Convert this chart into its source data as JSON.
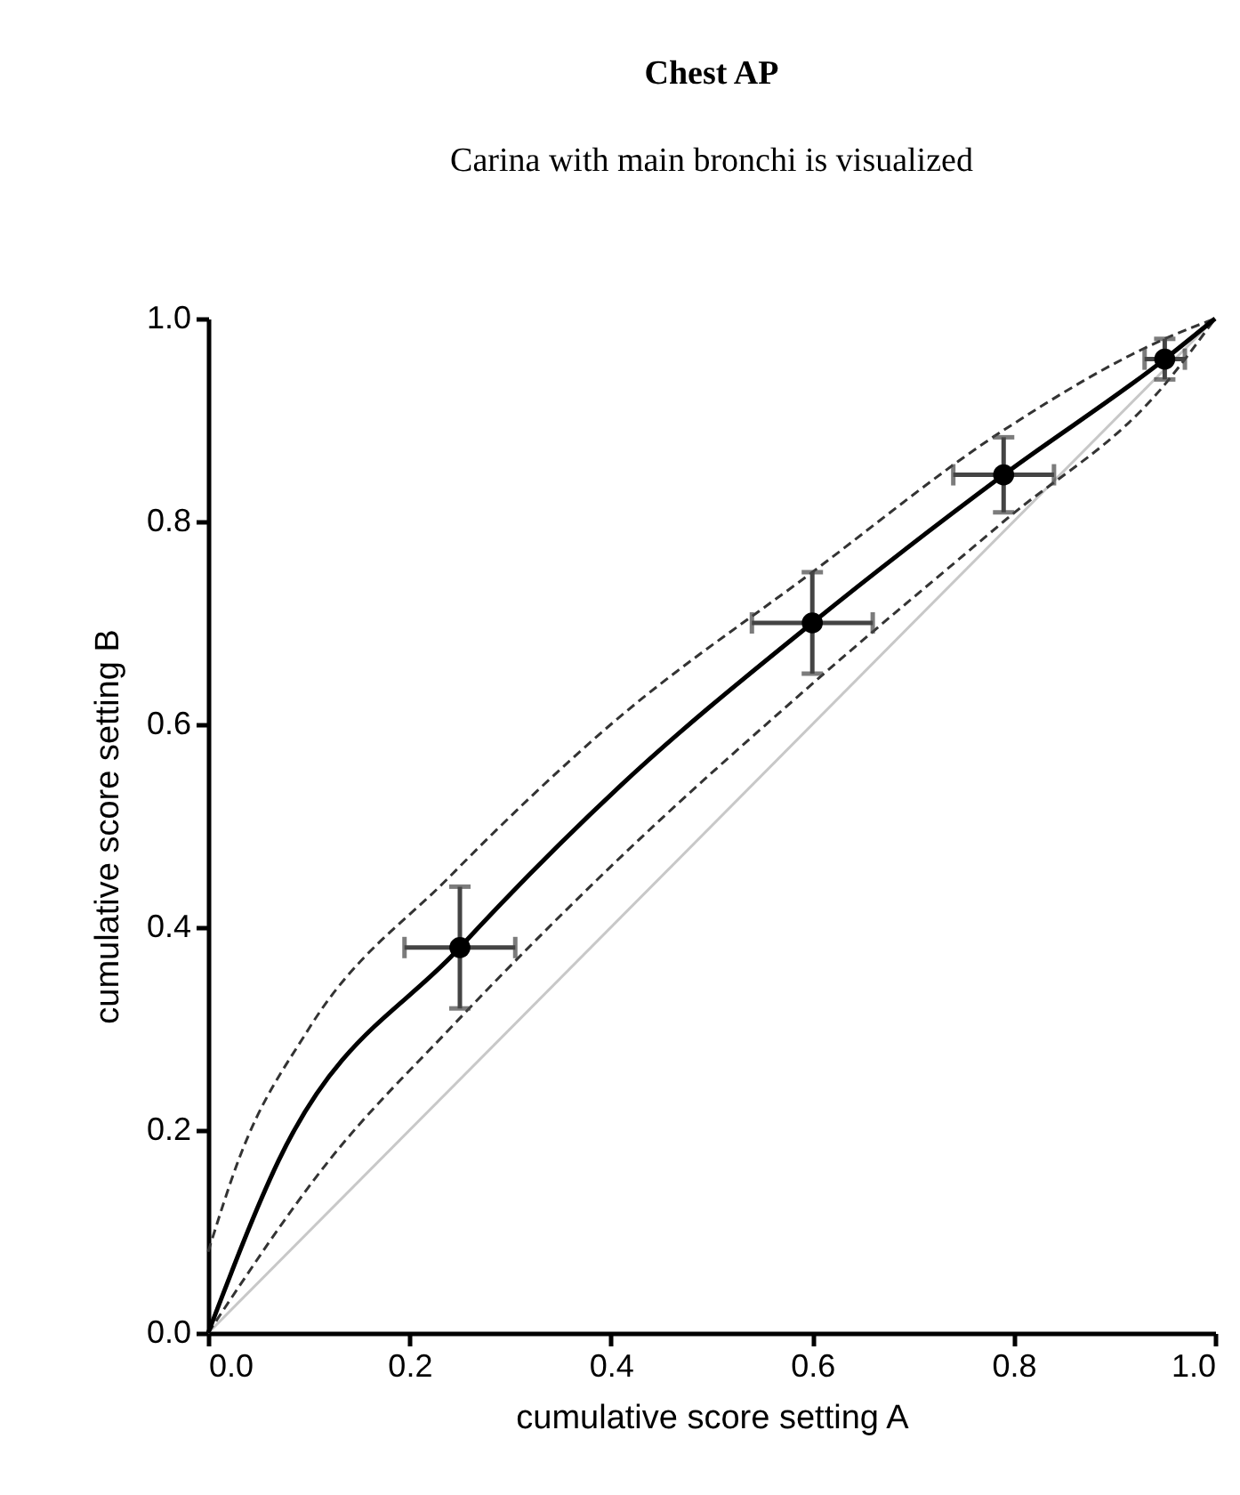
{
  "chart_data": {
    "type": "scatter",
    "title": "Chest AP",
    "subtitle": "Carina with main bronchi is visualized",
    "xlabel": "cumulative score setting A",
    "ylabel": "cumulative score setting B",
    "xlim": [
      0,
      1
    ],
    "ylim": [
      0,
      1
    ],
    "xticks": [
      {
        "value": 0,
        "label": "0.0"
      },
      {
        "value": 0.2,
        "label": "0.2"
      },
      {
        "value": 0.4,
        "label": "0.4"
      },
      {
        "value": 0.6,
        "label": "0.6"
      },
      {
        "value": 0.8,
        "label": "0.8"
      },
      {
        "value": 1,
        "label": "1.0"
      }
    ],
    "yticks": [
      {
        "value": 0,
        "label": "0.0"
      },
      {
        "value": 0.2,
        "label": "0.2"
      },
      {
        "value": 0.4,
        "label": "0.4"
      },
      {
        "value": 0.6,
        "label": "0.6"
      },
      {
        "value": 0.8,
        "label": "0.8"
      },
      {
        "value": 1,
        "label": "1.0"
      }
    ],
    "grid": false,
    "series": [
      {
        "type": "line",
        "color": "#c8c8c8",
        "line_style": "solid",
        "marker": "none",
        "x": [
          0,
          1
        ],
        "values": [
          0,
          1
        ]
      },
      {
        "type": "line",
        "color": "#333333",
        "line_style": "dashed",
        "marker": "none",
        "x": [
          0,
          0.03,
          0.1,
          0.24,
          0.4,
          0.6,
          0.79,
          0.95,
          1
        ],
        "values": [
          0.08,
          0.17,
          0.3,
          0.45,
          0.6,
          0.75,
          0.89,
          0.98,
          1
        ]
      },
      {
        "type": "line",
        "color": "#333333",
        "line_style": "dashed",
        "marker": "none",
        "x": [
          0,
          0.12,
          0.24,
          0.4,
          0.6,
          0.79,
          0.95,
          1
        ],
        "values": [
          0,
          0.17,
          0.3,
          0.46,
          0.64,
          0.8,
          0.935,
          1
        ]
      },
      {
        "type": "line",
        "color": "#000000",
        "line_style": "solid",
        "marker": "none",
        "x": [
          0,
          0.07,
          0.25,
          0.41,
          0.6,
          0.79,
          0.95,
          1
        ],
        "values": [
          0,
          0.17,
          0.38,
          0.54,
          0.7,
          0.846,
          0.96,
          1
        ]
      },
      {
        "type": "scatter",
        "color": "#000000",
        "marker": "circle",
        "x": [
          0.25,
          0.6,
          0.79,
          0.95
        ],
        "values": [
          0.38,
          0.7,
          0.846,
          0.96
        ],
        "errors": [
          0.06,
          0.05,
          0.037,
          0.02
        ],
        "xerrors": [
          0.055,
          0.06,
          0.05,
          0.02
        ]
      }
    ]
  }
}
